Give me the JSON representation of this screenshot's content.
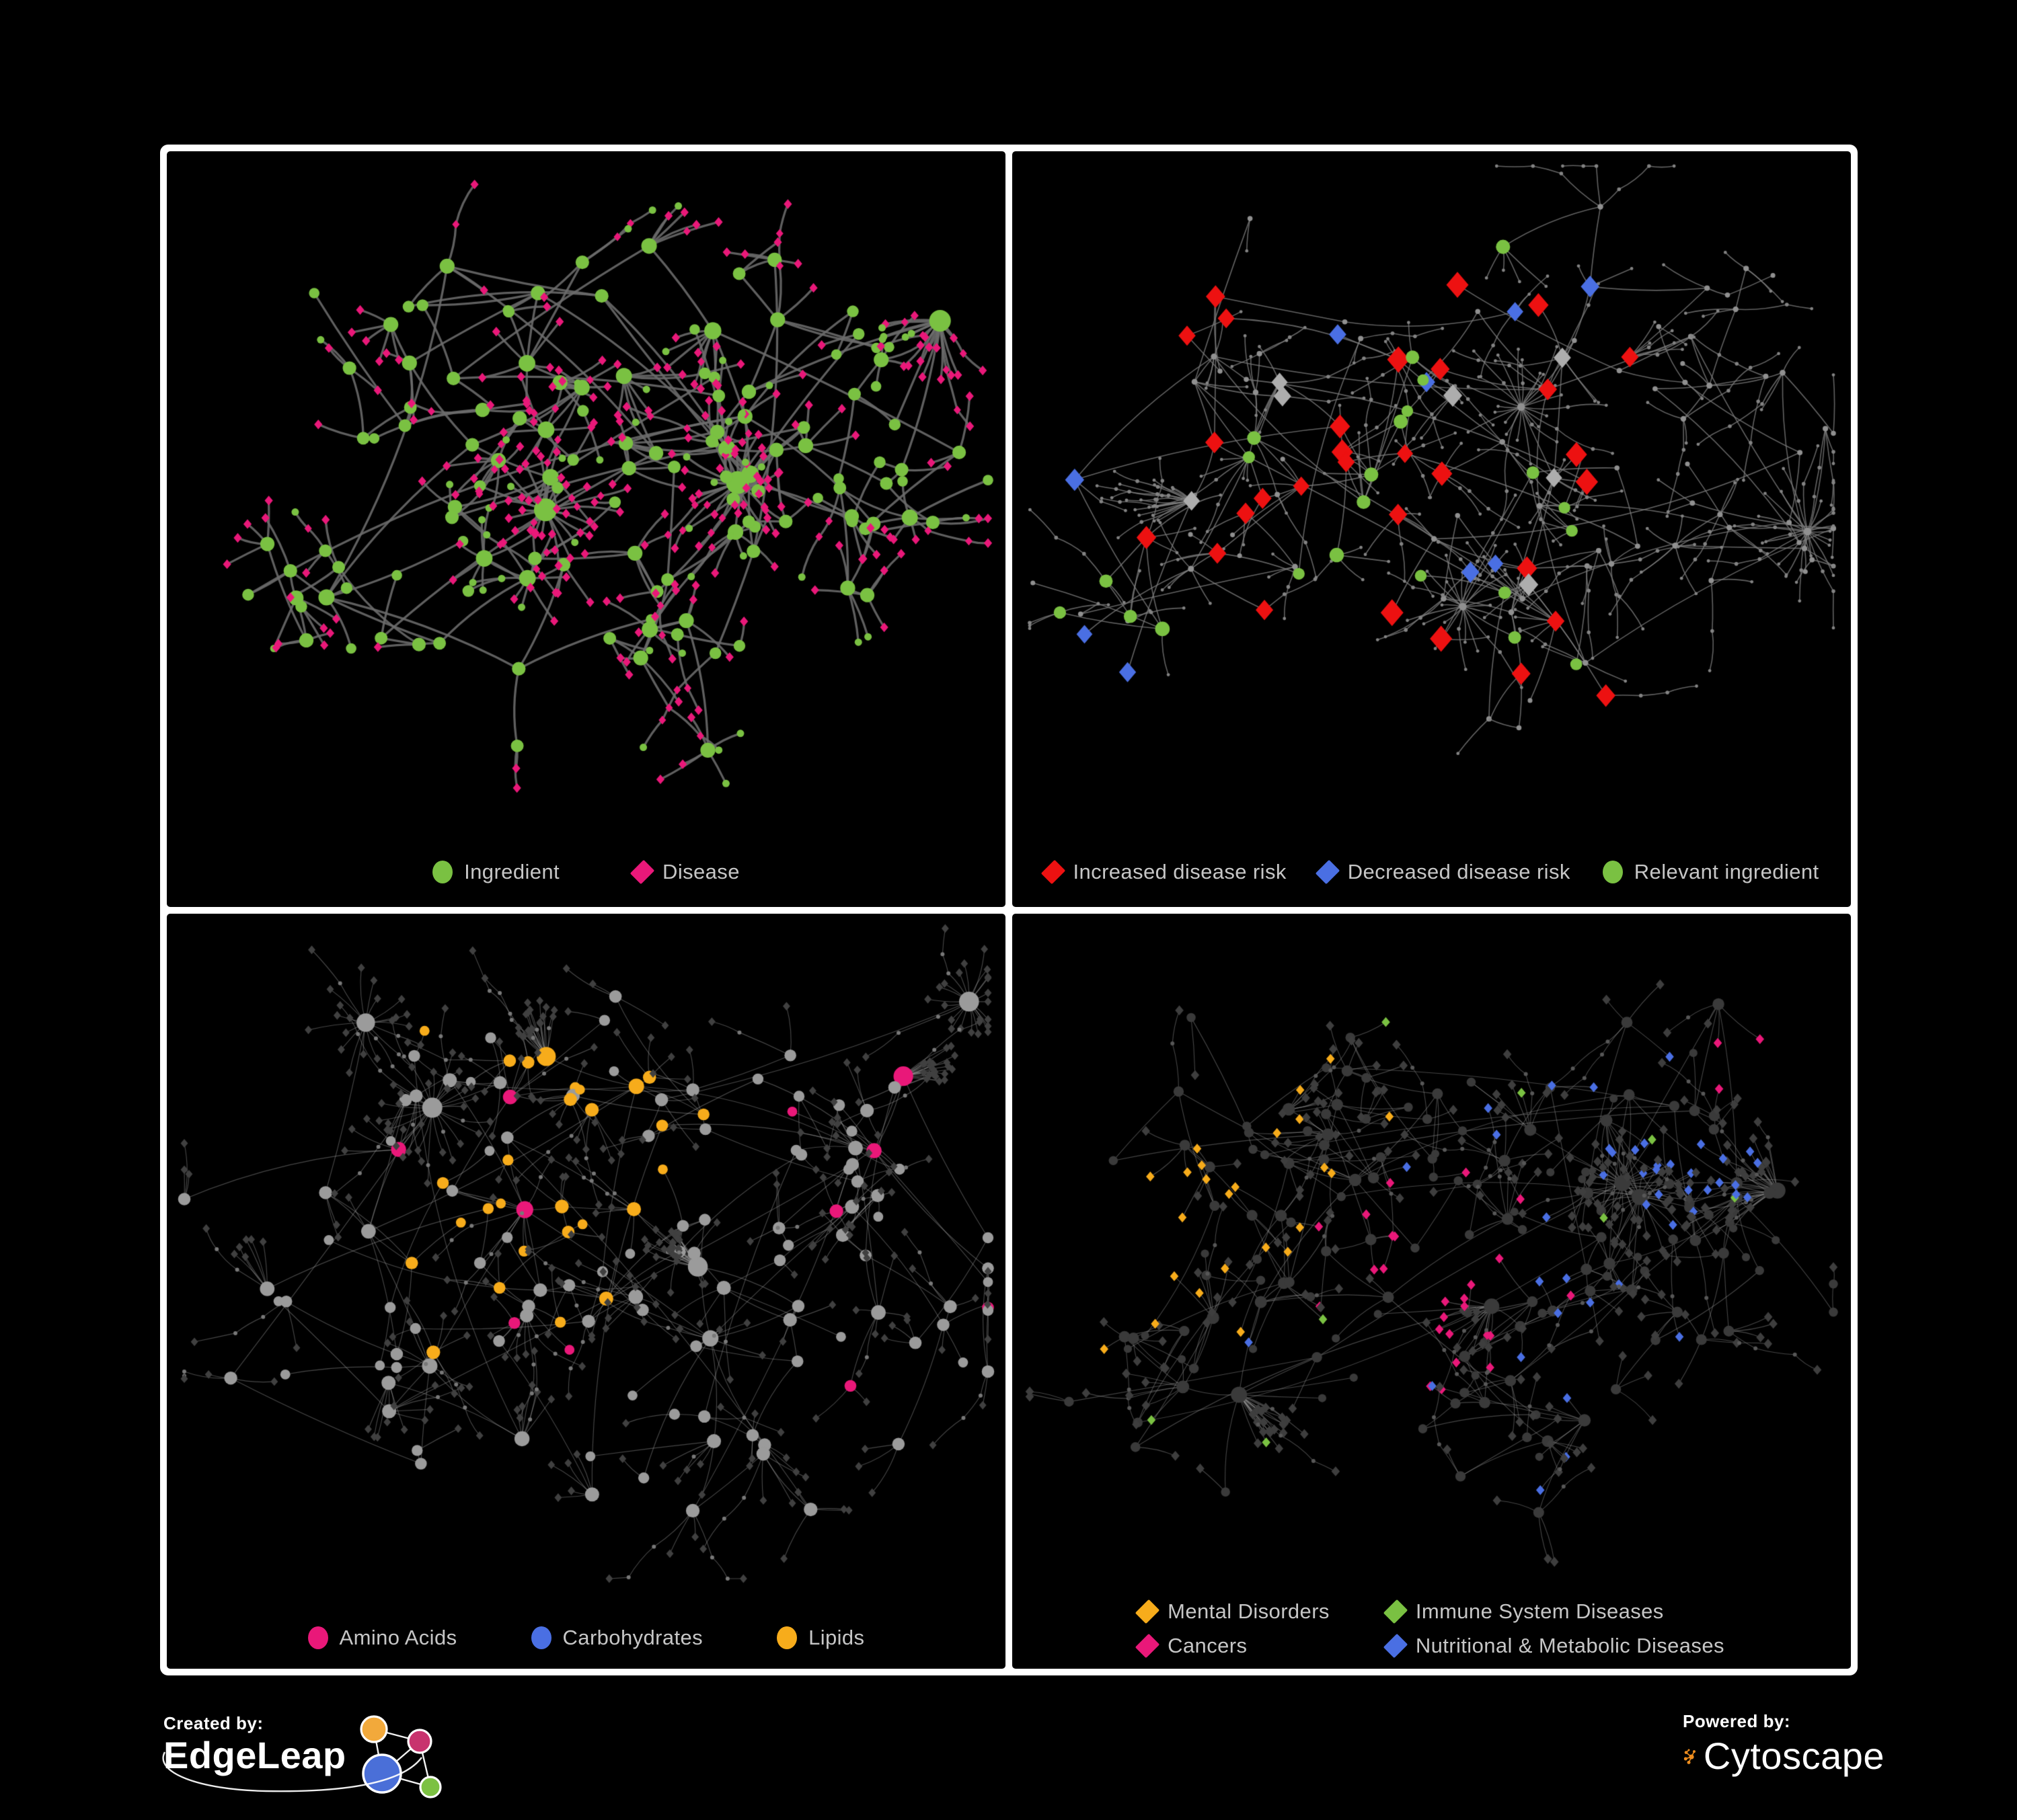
{
  "page": {
    "background": "#000000",
    "frame_color": "#ffffff",
    "legend_text_color": "#c6c6c6"
  },
  "panels": [
    {
      "id": "ingredient-disease",
      "legend": [
        {
          "shape": "circle",
          "color": "#7AC142",
          "label": "Ingredient"
        },
        {
          "shape": "diamond",
          "color": "#E91879",
          "label": "Disease"
        }
      ],
      "network": {
        "seed": 41,
        "style": "p1",
        "hubs": 128,
        "extraLinks": 14,
        "leafMax": 9,
        "burstChance": 0.06,
        "chainChance": 0.12,
        "edgeWidth": 3.3,
        "edgeAlpha": 0.88,
        "colors": {
          "edge": "#6C6C6C",
          "hub": "#7AC142",
          "leaf": "#E91879",
          "leafAlt": "#7AC142"
        }
      }
    },
    {
      "id": "disease-risk",
      "legend": [
        {
          "shape": "diamond",
          "color": "#ED1111",
          "label": "Increased disease risk"
        },
        {
          "shape": "diamond",
          "color": "#4A6FE3",
          "label": "Decreased disease risk"
        },
        {
          "shape": "circle",
          "color": "#7AC142",
          "label": "Relevant ingredient"
        }
      ],
      "network": {
        "seed": 97,
        "style": "p2",
        "hubs": 140,
        "extraLinks": 10,
        "leafMax": 7,
        "burstChance": 0.05,
        "chainChance": 0.34,
        "edgeWidth": 1.6,
        "edgeAlpha": 0.78,
        "colors": {
          "edge": "#7E7E7E",
          "dot": "#909090",
          "leafDot": "#838383",
          "red": "#ED1111",
          "blue": "#4A6FE3",
          "silver": "#ADADAD",
          "green": "#7AC142"
        },
        "counts": {
          "red": 30,
          "blue": 9,
          "silver": 7,
          "green": 22
        }
      }
    },
    {
      "id": "nutrient-classes",
      "legend": [
        {
          "shape": "circle",
          "color": "#E91879",
          "label": "Amino Acids"
        },
        {
          "shape": "circle",
          "color": "#4A6FE3",
          "label": "Carbohydrates"
        },
        {
          "shape": "circle",
          "color": "#F7AC1B",
          "label": "Lipids"
        }
      ],
      "network": {
        "seed": 23,
        "style": "p3",
        "hubs": 150,
        "extraLinks": 12,
        "leafMax": 8,
        "burstChance": 0.055,
        "chainChance": 0.18,
        "edgeWidth": 1.15,
        "edgeAlpha": 0.42,
        "colors": {
          "edge": "#A8A8A8",
          "gray": "#9B9B9B",
          "orange": "#F7AC1B",
          "pink": "#E91879",
          "blue": "#4A6FE3",
          "leaf": "#404040",
          "chain": "#787878"
        }
      }
    },
    {
      "id": "disease-classes",
      "legend": [
        {
          "shape": "diamond",
          "color": "#F7AC1B",
          "label": "Mental Disorders"
        },
        {
          "shape": "diamond",
          "color": "#7AC142",
          "label": "Immune System Diseases"
        },
        {
          "shape": "diamond",
          "color": "#E91879",
          "label": "Cancers"
        },
        {
          "shape": "diamond",
          "color": "#4A6FE3",
          "label": "Nutritional & Metabolic Diseases"
        }
      ],
      "network": {
        "seed": 68,
        "style": "p4",
        "hubs": 150,
        "extraLinks": 12,
        "leafMax": 8,
        "burstChance": 0.055,
        "chainChance": 0.18,
        "edgeWidth": 1.1,
        "edgeAlpha": 0.45,
        "colors": {
          "edge": "#9A9A9A",
          "hub": "#3A3A3A",
          "leaf": "#3E3E3E",
          "orange": "#F7AC1B",
          "pink": "#E91879",
          "blue": "#4A6FE3",
          "green": "#7AC142",
          "chain": "#575757"
        }
      }
    }
  ],
  "footer": {
    "created_by": {
      "caption": "Created by:",
      "brand": "EdgeLeap"
    },
    "powered_by": {
      "caption": "Powered by:",
      "brand": "Cytoscape"
    }
  },
  "logo_colors": {
    "edgeleap_orange": "#F2A93B",
    "edgeleap_pink": "#C8336E",
    "edgeleap_blue": "#4A6FD8",
    "edgeleap_green": "#7CC142",
    "cytoscape_orange": "#EE8D1E"
  }
}
